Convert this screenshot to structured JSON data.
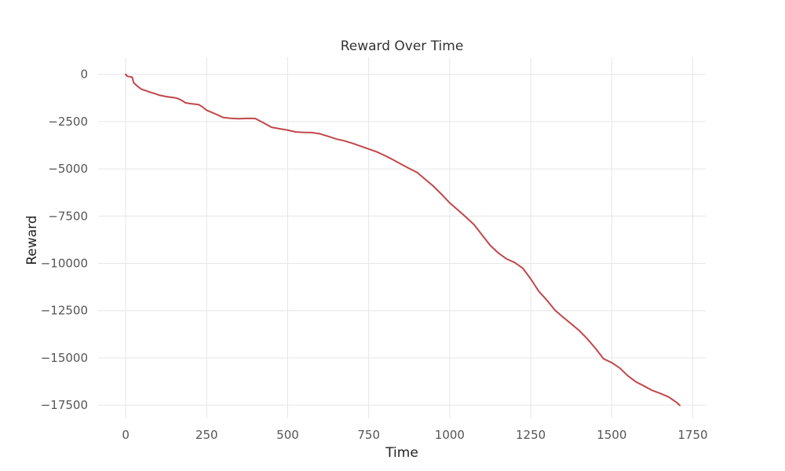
{
  "chart_data": {
    "type": "line",
    "title": "Reward Over Time",
    "xlabel": "Time",
    "ylabel": "Reward",
    "xlim": [
      -85,
      1790
    ],
    "ylim": [
      -18200,
      900
    ],
    "grid": true,
    "x_ticks": [
      0,
      250,
      500,
      750,
      1000,
      1250,
      1500,
      1750
    ],
    "x_tick_labels": [
      "0",
      "250",
      "500",
      "750",
      "1000",
      "1250",
      "1500",
      "1750"
    ],
    "y_ticks": [
      0,
      -2500,
      -5000,
      -7500,
      -10000,
      -12500,
      -15000,
      -17500
    ],
    "y_tick_labels": [
      "0",
      "−2500",
      "−5000",
      "−7500",
      "−10000",
      "−12500",
      "−15000",
      "−17500"
    ],
    "series": [
      {
        "color": "#c0474a",
        "x": [
          0,
          5,
          10,
          20,
          25,
          30,
          40,
          50,
          60,
          75,
          90,
          105,
          120,
          135,
          155,
          165,
          175,
          185,
          200,
          225,
          235,
          250,
          275,
          300,
          325,
          350,
          375,
          400,
          425,
          450,
          475,
          500,
          525,
          550,
          575,
          600,
          625,
          650,
          675,
          700,
          725,
          750,
          775,
          800,
          825,
          850,
          875,
          900,
          925,
          950,
          975,
          1000,
          1025,
          1050,
          1075,
          1100,
          1125,
          1150,
          1175,
          1200,
          1225,
          1250,
          1275,
          1300,
          1325,
          1350,
          1375,
          1400,
          1425,
          1450,
          1475,
          1500,
          1525,
          1550,
          1575,
          1600,
          1625,
          1650,
          1675,
          1700,
          1710
        ],
        "y": [
          0,
          -100,
          -120,
          -150,
          -450,
          -530,
          -680,
          -800,
          -850,
          -940,
          -1020,
          -1110,
          -1160,
          -1200,
          -1250,
          -1310,
          -1400,
          -1510,
          -1550,
          -1600,
          -1700,
          -1900,
          -2080,
          -2280,
          -2330,
          -2350,
          -2330,
          -2340,
          -2560,
          -2800,
          -2880,
          -2950,
          -3050,
          -3070,
          -3080,
          -3150,
          -3280,
          -3420,
          -3520,
          -3650,
          -3800,
          -3950,
          -4100,
          -4300,
          -4520,
          -4750,
          -4980,
          -5200,
          -5560,
          -5920,
          -6350,
          -6800,
          -7170,
          -7550,
          -7950,
          -8500,
          -9050,
          -9450,
          -9760,
          -9950,
          -10250,
          -10820,
          -11480,
          -11950,
          -12480,
          -12850,
          -13200,
          -13560,
          -14000,
          -14500,
          -15050,
          -15250,
          -15540,
          -15950,
          -16270,
          -16490,
          -16720,
          -16880,
          -17060,
          -17350,
          -17510
        ]
      }
    ]
  }
}
